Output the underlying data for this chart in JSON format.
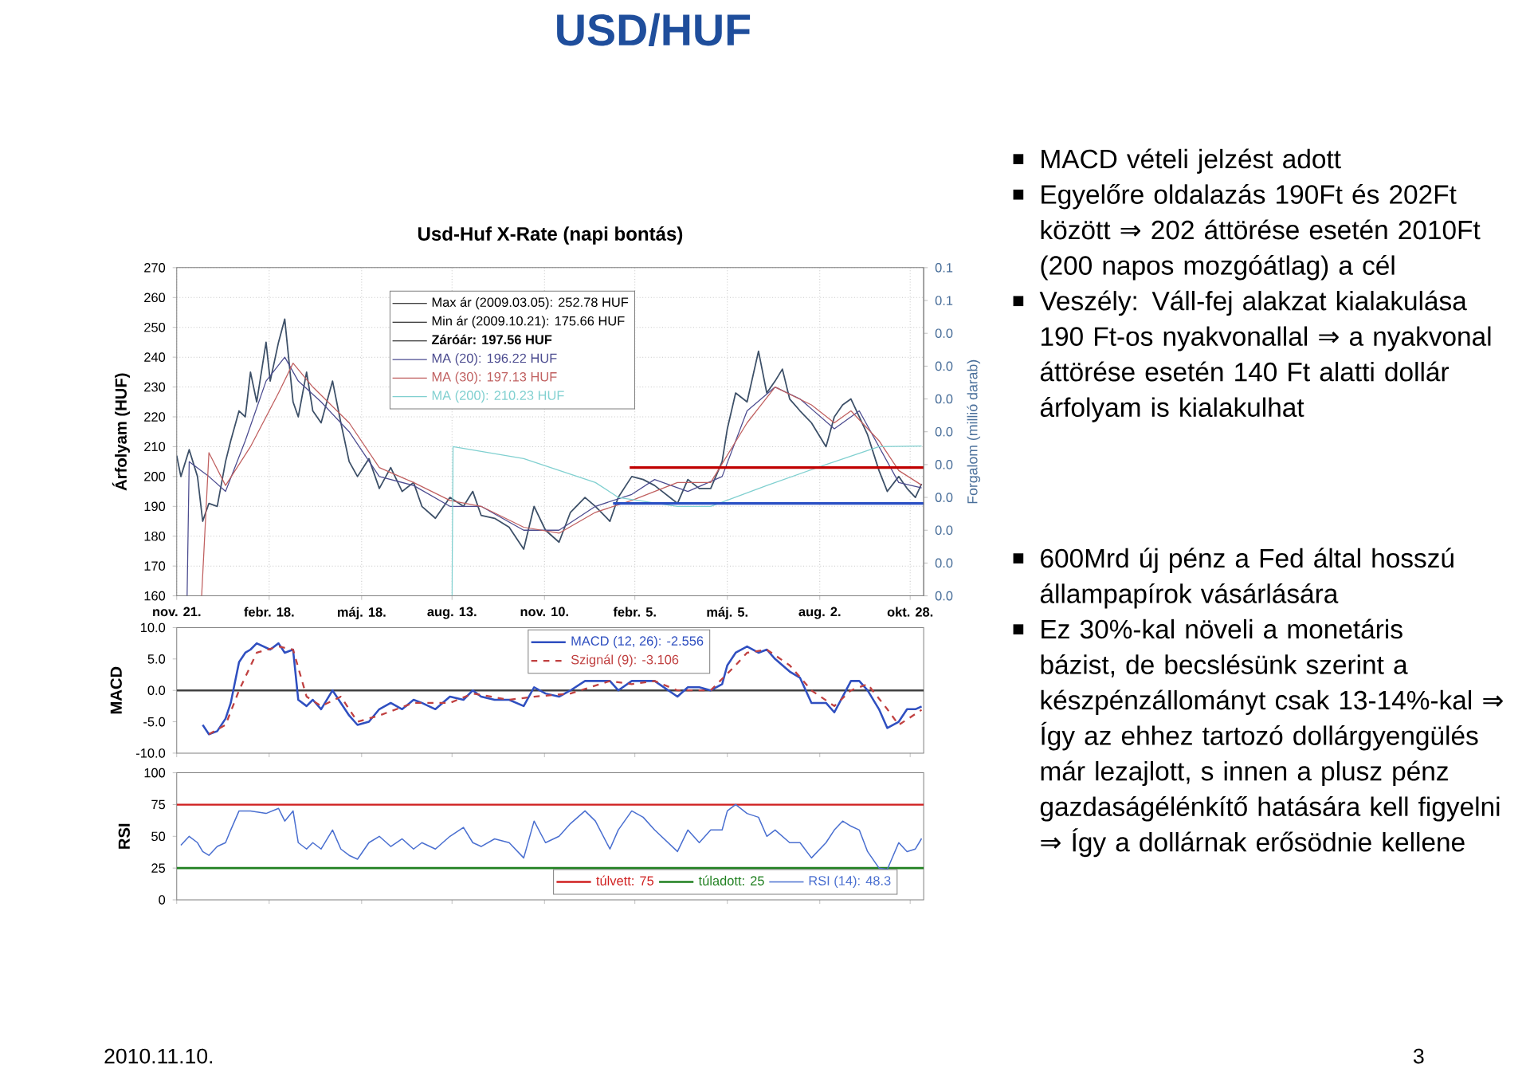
{
  "chart_data": [
    {
      "type": "line",
      "title": "Usd-Huf X-Rate (napi bontás)",
      "ylabel": "Árfolyam (HUF)",
      "y2label": "Forgalom (millió darab)",
      "xlim": [
        "2008-11-21",
        "2010-11-10"
      ],
      "xticks": [
        {
          "value": "2008-11-21",
          "label": "nov. 21."
        },
        {
          "value": "2009-02-18",
          "label": "febr. 18."
        },
        {
          "value": "2009-05-18",
          "label": "máj. 18."
        },
        {
          "value": "2009-08-13",
          "label": "aug. 13."
        },
        {
          "value": "2009-11-10",
          "label": "nov. 10."
        },
        {
          "value": "2010-02-05",
          "label": "febr. 5."
        },
        {
          "value": "2010-05-05",
          "label": "máj. 5."
        },
        {
          "value": "2010-08-02",
          "label": "aug. 2."
        },
        {
          "value": "2010-10-28",
          "label": "okt. 28."
        }
      ],
      "ylim": [
        160,
        270
      ],
      "yticks": [
        160,
        170,
        180,
        190,
        200,
        210,
        220,
        230,
        240,
        250,
        260,
        270
      ],
      "y2lim": [
        0,
        0.06
      ],
      "y2ticks": [
        {
          "value": 0,
          "label": "0.0"
        },
        {
          "value": 0.006,
          "label": "0.0"
        },
        {
          "value": 0.012,
          "label": "0.0"
        },
        {
          "value": 0.018,
          "label": "0.0"
        },
        {
          "value": 0.024,
          "label": "0.0"
        },
        {
          "value": 0.03,
          "label": "0.0"
        },
        {
          "value": 0.036,
          "label": "0.0"
        },
        {
          "value": 0.042,
          "label": "0.0"
        },
        {
          "value": 0.048,
          "label": "0.0"
        },
        {
          "value": 0.054,
          "label": "0.1"
        },
        {
          "value": 0.06,
          "label": "0.1"
        }
      ],
      "grid": true,
      "legend": "top",
      "annotations": [
        "Max ár (2009.03.05): 252.78 HUF",
        "Min ár (2009.10.21): 175.66 HUF",
        "Záróár: 197.56 HUF"
      ],
      "series": [
        {
          "color": "#3d5068",
          "x": [
            "2008-11-21",
            "2008-11-25",
            "2008-12-03",
            "2008-12-11",
            "2008-12-16",
            "2008-12-22",
            "2008-12-30",
            "2009-01-07",
            "2009-01-12",
            "2009-01-20",
            "2009-01-26",
            "2009-01-31",
            "2009-02-06",
            "2009-02-15",
            "2009-02-19",
            "2009-02-27",
            "2009-03-05",
            "2009-03-13",
            "2009-03-18",
            "2009-03-26",
            "2009-04-01",
            "2009-04-09",
            "2009-04-20",
            "2009-04-28",
            "2009-05-06",
            "2009-05-14",
            "2009-05-25",
            "2009-06-04",
            "2009-06-15",
            "2009-06-26",
            "2009-07-07",
            "2009-07-15",
            "2009-07-28",
            "2009-08-11",
            "2009-08-24",
            "2009-09-02",
            "2009-09-10",
            "2009-09-23",
            "2009-10-07",
            "2009-10-21",
            "2009-10-31",
            "2009-11-11",
            "2009-11-24",
            "2009-12-05",
            "2009-12-19",
            "2009-12-29",
            "2010-01-12",
            "2010-01-20",
            "2010-02-02",
            "2010-02-13",
            "2010-02-24",
            "2010-03-18",
            "2010-03-28",
            "2010-04-08",
            "2010-04-19",
            "2010-04-30",
            "2010-05-05",
            "2010-05-13",
            "2010-05-24",
            "2010-06-04",
            "2010-06-12",
            "2010-06-20",
            "2010-06-27",
            "2010-07-04",
            "2010-07-14",
            "2010-07-25",
            "2010-08-08",
            "2010-08-16",
            "2010-08-24",
            "2010-09-01",
            "2010-09-09",
            "2010-09-17",
            "2010-09-28",
            "2010-10-06",
            "2010-10-17",
            "2010-10-25",
            "2010-11-02",
            "2010-11-08"
          ],
          "values": [
            207,
            200,
            209,
            200,
            185,
            191,
            190,
            205,
            212,
            222,
            220,
            235,
            225,
            245,
            232,
            245,
            252.78,
            225,
            220,
            235,
            222,
            218,
            232,
            218,
            205,
            200,
            206,
            196,
            203,
            195,
            198,
            190,
            186,
            193,
            190,
            195,
            187,
            186,
            183,
            175.66,
            190,
            182,
            178,
            188,
            193,
            190,
            185,
            193,
            200,
            199,
            197,
            191,
            199,
            196,
            196,
            205,
            216,
            228,
            225,
            242,
            228,
            232,
            236,
            226,
            222,
            218,
            210,
            220,
            224,
            226,
            220,
            214,
            202,
            195,
            200,
            196,
            193,
            197.56
          ]
        },
        {
          "name": "MA (20): 196.22 HUF",
          "color": "#4b4b8f",
          "x": [
            "2008-12-01",
            "2008-12-03",
            "2008-12-22",
            "2009-01-07",
            "2009-01-26",
            "2009-02-15",
            "2009-03-05",
            "2009-03-18",
            "2009-04-09",
            "2009-05-06",
            "2009-06-04",
            "2009-07-07",
            "2009-08-11",
            "2009-09-10",
            "2009-10-21",
            "2009-11-24",
            "2009-12-29",
            "2010-02-02",
            "2010-02-24",
            "2010-03-28",
            "2010-04-30",
            "2010-05-24",
            "2010-06-20",
            "2010-07-14",
            "2010-08-16",
            "2010-09-09",
            "2010-09-28",
            "2010-10-17",
            "2010-11-08"
          ],
          "values": [
            160,
            205,
            200,
            195,
            212,
            232,
            240,
            232,
            225,
            215,
            200,
            197,
            190,
            190,
            182,
            182,
            190,
            194,
            199,
            195,
            200,
            222,
            230,
            226,
            216,
            222,
            210,
            198,
            196.22
          ]
        },
        {
          "name": "MA (30): 197.13 HUF",
          "color": "#c06060",
          "x": [
            "2008-12-15",
            "2008-12-22",
            "2009-01-07",
            "2009-01-31",
            "2009-02-27",
            "2009-03-13",
            "2009-04-01",
            "2009-05-06",
            "2009-06-04",
            "2009-07-07",
            "2009-08-11",
            "2009-09-10",
            "2009-10-21",
            "2009-11-24",
            "2009-12-29",
            "2010-02-02",
            "2010-03-18",
            "2010-04-19",
            "2010-05-24",
            "2010-06-20",
            "2010-07-25",
            "2010-08-16",
            "2010-09-01",
            "2010-09-28",
            "2010-10-17",
            "2010-11-08"
          ],
          "values": [
            160,
            208,
            197,
            210,
            228,
            238,
            230,
            218,
            203,
            198,
            192,
            190,
            183,
            181,
            188,
            192,
            198,
            198,
            218,
            230,
            224,
            218,
            222,
            212,
            202,
            197.13
          ]
        },
        {
          "name": "MA (200): 210.23 HUF",
          "color": "#80d0d0",
          "x": [
            "2009-08-13",
            "2009-08-14",
            "2009-10-21",
            "2009-12-29",
            "2010-01-20",
            "2010-03-18",
            "2010-04-19",
            "2010-06-12",
            "2010-08-08",
            "2010-09-28",
            "2010-11-08"
          ],
          "values": [
            160,
            210,
            206,
            198,
            193,
            190,
            190,
            197,
            204,
            210,
            210.23
          ]
        },
        {
          "color": "#c00000",
          "x": [
            "2010-01-31",
            "2010-11-10"
          ],
          "values": [
            203,
            203
          ]
        },
        {
          "color": "#2a4fc4",
          "x": [
            "2010-01-15",
            "2010-11-10"
          ],
          "values": [
            191,
            191
          ]
        }
      ]
    },
    {
      "type": "line",
      "ylabel": "MACD",
      "tick_labels": "y",
      "legend": "top",
      "xlim": [
        "2008-11-21",
        "2010-11-10"
      ],
      "xticks": [
        {
          "value": "2008-11-21",
          "label": null
        },
        {
          "value": "2009-02-18",
          "label": null
        },
        {
          "value": "2009-05-18",
          "label": null
        },
        {
          "value": "2009-08-13",
          "label": null
        },
        {
          "value": "2009-11-10",
          "label": null
        },
        {
          "value": "2010-02-05",
          "label": null
        },
        {
          "value": "2010-05-05",
          "label": null
        },
        {
          "value": "2010-08-02",
          "label": null
        },
        {
          "value": "2010-10-28",
          "label": null
        }
      ],
      "ylim": [
        -10,
        10
      ],
      "yticks": [
        {
          "value": -10,
          "label": "-10.0"
        },
        {
          "value": -5,
          "label": "-5.0"
        },
        {
          "value": 0,
          "label": "0.0"
        },
        {
          "value": 5,
          "label": "5.0"
        },
        {
          "value": 10,
          "label": "10.0"
        }
      ],
      "ref_lines": [
        {
          "axis": "y",
          "value": 0,
          "color": "#404040"
        }
      ],
      "series": [
        {
          "name": "MACD (12, 26): -2.556",
          "color": "#2f4fc0",
          "x": [
            "2008-12-16",
            "2008-12-22",
            "2008-12-30",
            "2009-01-07",
            "2009-01-12",
            "2009-01-20",
            "2009-01-26",
            "2009-01-31",
            "2009-02-06",
            "2009-02-19",
            "2009-02-27",
            "2009-03-05",
            "2009-03-13",
            "2009-03-18",
            "2009-03-26",
            "2009-04-01",
            "2009-04-09",
            "2009-04-20",
            "2009-04-28",
            "2009-05-06",
            "2009-05-14",
            "2009-05-25",
            "2009-06-04",
            "2009-06-15",
            "2009-06-26",
            "2009-07-07",
            "2009-07-15",
            "2009-07-28",
            "2009-08-11",
            "2009-08-24",
            "2009-09-02",
            "2009-09-10",
            "2009-09-23",
            "2009-10-07",
            "2009-10-21",
            "2009-10-31",
            "2009-11-11",
            "2009-11-24",
            "2009-12-05",
            "2009-12-19",
            "2009-12-29",
            "2010-01-12",
            "2010-01-20",
            "2010-02-02",
            "2010-02-13",
            "2010-02-24",
            "2010-03-18",
            "2010-03-28",
            "2010-04-08",
            "2010-04-19",
            "2010-04-30",
            "2010-05-05",
            "2010-05-13",
            "2010-05-24",
            "2010-06-04",
            "2010-06-12",
            "2010-06-20",
            "2010-07-04",
            "2010-07-14",
            "2010-07-25",
            "2010-08-08",
            "2010-08-16",
            "2010-08-24",
            "2010-09-01",
            "2010-09-09",
            "2010-09-17",
            "2010-09-28",
            "2010-10-06",
            "2010-10-17",
            "2010-10-25",
            "2010-11-02",
            "2010-11-08"
          ],
          "values": [
            -5.5,
            -7,
            -6.5,
            -4.5,
            -2,
            4.5,
            6,
            6.5,
            7.5,
            6.5,
            7.5,
            6,
            6.5,
            -1.5,
            -2.5,
            -1.5,
            -3,
            0,
            -2,
            -4,
            -5.5,
            -5,
            -3,
            -2,
            -3,
            -1.5,
            -2,
            -3,
            -1,
            -1.5,
            0,
            -1,
            -1.5,
            -1.5,
            -2.5,
            0.5,
            -0.5,
            -1,
            0,
            1.5,
            1.5,
            1.5,
            0,
            1.5,
            1.5,
            1.5,
            -1,
            0.5,
            0.5,
            0,
            1,
            4,
            6,
            7,
            6,
            6.5,
            5,
            3,
            2,
            -2,
            -2,
            -3.5,
            -1,
            1.5,
            1.5,
            0,
            -3,
            -6,
            -5,
            -3,
            -3,
            -2.556
          ]
        },
        {
          "name": "Szignál (9): -3.106",
          "color": "#c04040",
          "line_style": "dashed",
          "x": [
            "2008-12-22",
            "2009-01-07",
            "2009-01-20",
            "2009-02-06",
            "2009-02-27",
            "2009-03-13",
            "2009-03-26",
            "2009-04-09",
            "2009-04-28",
            "2009-05-14",
            "2009-06-04",
            "2009-07-07",
            "2009-08-11",
            "2009-09-02",
            "2009-10-07",
            "2009-10-31",
            "2009-12-05",
            "2010-01-12",
            "2010-02-02",
            "2010-02-24",
            "2010-03-18",
            "2010-04-19",
            "2010-05-13",
            "2010-05-24",
            "2010-06-12",
            "2010-07-04",
            "2010-07-25",
            "2010-08-16",
            "2010-09-01",
            "2010-09-17",
            "2010-10-06",
            "2010-10-17",
            "2010-11-08"
          ],
          "values": [
            -7,
            -5.5,
            0,
            6,
            7,
            6.5,
            -1,
            -2.5,
            -1,
            -5,
            -4,
            -2,
            -2,
            -0.5,
            -1.5,
            -1,
            -0.5,
            1.5,
            1,
            1.5,
            0,
            0,
            4,
            6,
            6.5,
            4,
            0,
            -2.5,
            0,
            1,
            -3,
            -5.5,
            -3.106
          ]
        }
      ]
    },
    {
      "type": "line",
      "ylabel": "RSI",
      "tick_labels": "y",
      "legend": "bottom right",
      "xlim": [
        "2008-11-21",
        "2010-11-10"
      ],
      "xticks": [
        {
          "value": "2008-11-21",
          "label": null
        },
        {
          "value": "2009-02-18",
          "label": null
        },
        {
          "value": "2009-05-18",
          "label": null
        },
        {
          "value": "2009-08-13",
          "label": null
        },
        {
          "value": "2009-11-10",
          "label": null
        },
        {
          "value": "2010-02-05",
          "label": null
        },
        {
          "value": "2010-05-05",
          "label": null
        },
        {
          "value": "2010-08-02",
          "label": null
        },
        {
          "value": "2010-10-28",
          "label": null
        }
      ],
      "ylim": [
        0,
        100
      ],
      "yticks": [
        0,
        25,
        50,
        75,
        100
      ],
      "ref_lines": [
        {
          "axis": "y",
          "value": 75,
          "label": "túlvett: 75",
          "color": "#d02020"
        },
        {
          "axis": "y",
          "value": 25,
          "label": "túladott: 25",
          "color": "#208020"
        }
      ],
      "series": [
        {
          "name": "RSI (14): 48.3",
          "color": "#4a6fd0",
          "x": [
            "2008-11-25",
            "2008-12-03",
            "2008-12-11",
            "2008-12-16",
            "2008-12-22",
            "2008-12-30",
            "2009-01-07",
            "2009-01-12",
            "2009-01-20",
            "2009-01-31",
            "2009-02-15",
            "2009-02-27",
            "2009-03-05",
            "2009-03-13",
            "2009-03-18",
            "2009-03-26",
            "2009-04-01",
            "2009-04-09",
            "2009-04-20",
            "2009-04-28",
            "2009-05-06",
            "2009-05-14",
            "2009-05-25",
            "2009-06-04",
            "2009-06-15",
            "2009-06-26",
            "2009-07-07",
            "2009-07-15",
            "2009-07-28",
            "2009-08-11",
            "2009-08-24",
            "2009-09-02",
            "2009-09-10",
            "2009-09-23",
            "2009-10-07",
            "2009-10-21",
            "2009-10-31",
            "2009-11-11",
            "2009-11-24",
            "2009-12-05",
            "2009-12-19",
            "2009-12-29",
            "2010-01-12",
            "2010-01-20",
            "2010-02-02",
            "2010-02-13",
            "2010-02-24",
            "2010-03-18",
            "2010-03-28",
            "2010-04-08",
            "2010-04-19",
            "2010-04-30",
            "2010-05-05",
            "2010-05-13",
            "2010-05-24",
            "2010-06-04",
            "2010-06-12",
            "2010-06-20",
            "2010-07-04",
            "2010-07-14",
            "2010-07-25",
            "2010-08-08",
            "2010-08-16",
            "2010-08-24",
            "2010-09-01",
            "2010-09-09",
            "2010-09-17",
            "2010-09-28",
            "2010-10-06",
            "2010-10-17",
            "2010-10-25",
            "2010-11-02",
            "2010-11-08"
          ],
          "values": [
            43,
            50,
            45,
            38,
            35,
            42,
            45,
            55,
            70,
            70,
            68,
            72,
            62,
            70,
            45,
            40,
            45,
            40,
            55,
            40,
            35,
            32,
            45,
            50,
            42,
            48,
            40,
            45,
            40,
            50,
            57,
            45,
            42,
            48,
            45,
            33,
            62,
            45,
            50,
            60,
            70,
            62,
            40,
            55,
            70,
            65,
            55,
            38,
            55,
            45,
            55,
            55,
            70,
            75,
            68,
            65,
            50,
            55,
            45,
            45,
            33,
            45,
            55,
            62,
            58,
            55,
            38,
            25,
            24,
            45,
            38,
            40,
            48.3
          ]
        }
      ]
    },
    {
      "type": "other",
      "title": "USD/HUF",
      "annotations": [
        "MACD vételi jelzést adott",
        "Egyelőre oldalazás 190Ft és 202Ft között ⇒ 202 áttörése esetén 2010Ft (200 napos mozgóátlag) a cél",
        "Veszély: Váll-fej alakzat kialakulása 190 Ft-os nyakvonallal ⇒ a nyakvonal áttörése esetén 140 Ft alatti dollár árfolyam is kialakulhat",
        "600Mrd új pénz a Fed által hosszú állampapírok vásárlására",
        "Ez 30%-kal növeli a monetáris bázist, de becslésünk szerint a készpénzállományt csak 13-14%-kal ⇒ Így az ehhez tartozó dollárgyengülés már lezajlott, s innen a plusz pénz gazdaságélénkítő hatására kell figyelni ⇒ Így a dollárnak erősödnie kellene",
        "2010.11.10.",
        "3"
      ]
    }
  ]
}
